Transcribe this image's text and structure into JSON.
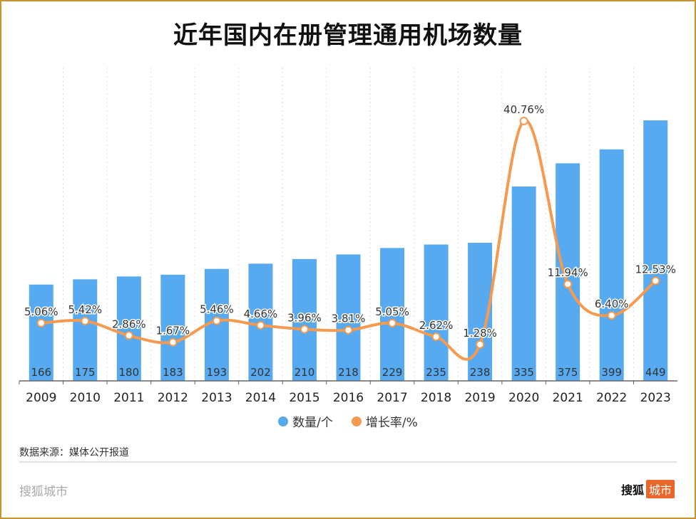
{
  "title": "近年国内在册管理通用机场数量",
  "chart_data": {
    "type": "bar+line",
    "title": "近年国内在册管理通用机场数量",
    "categories": [
      "2009",
      "2010",
      "2011",
      "2012",
      "2013",
      "2014",
      "2015",
      "2016",
      "2017",
      "2018",
      "2019",
      "2020",
      "2021",
      "2022",
      "2023"
    ],
    "series": [
      {
        "name": "数量/个",
        "type": "bar",
        "color": "#57a9f0",
        "values": [
          166,
          175,
          180,
          183,
          193,
          202,
          210,
          218,
          229,
          235,
          238,
          335,
          375,
          399,
          449
        ]
      },
      {
        "name": "增长率/%",
        "type": "line",
        "color": "#f59a4f",
        "values": [
          5.06,
          5.42,
          2.86,
          1.67,
          5.46,
          4.66,
          3.96,
          3.81,
          5.05,
          2.62,
          1.28,
          40.76,
          11.94,
          6.4,
          12.53
        ],
        "labels": [
          "5.06%",
          "5.42%",
          "2.86%",
          "1.67%",
          "5.46%",
          "4.66%",
          "3.96%",
          "3.81%",
          "5.05%",
          "2.62%",
          "1.28%",
          "40.76%",
          "11.94%",
          "6.40%",
          "12.53%"
        ]
      }
    ],
    "legend": "bottom",
    "grid": "vertical dotted"
  },
  "source": "数据来源：媒体公开报道",
  "brand_left": "搜狐城市",
  "brand_right": {
    "name": "搜狐",
    "tag": "城市"
  }
}
